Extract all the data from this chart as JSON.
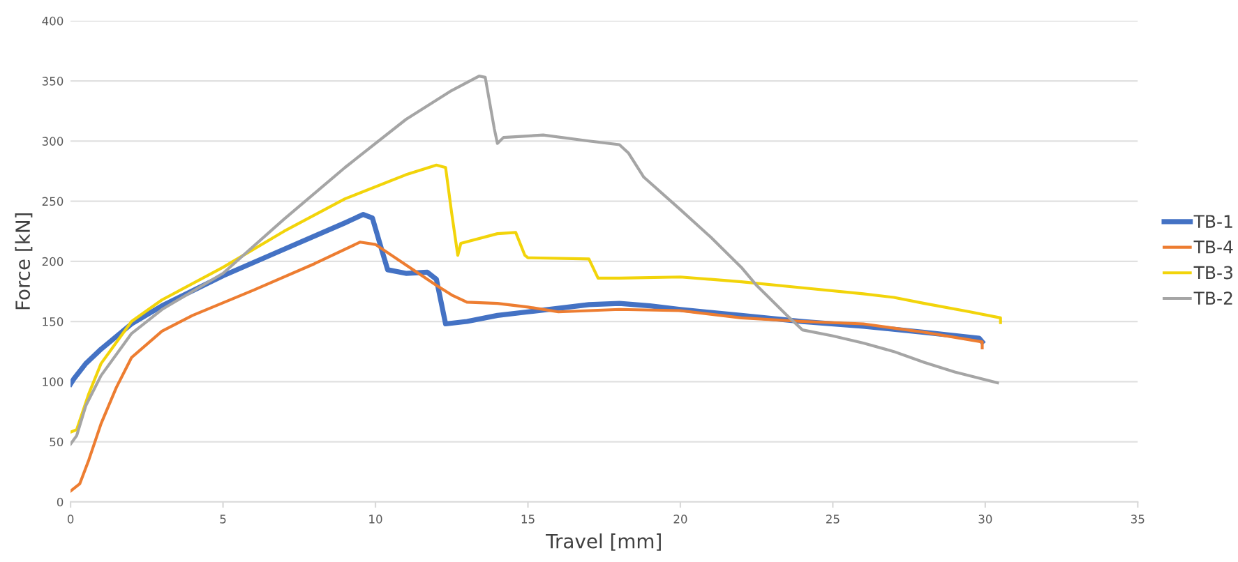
{
  "chart_data": {
    "type": "line",
    "xlabel": "Travel [mm]",
    "ylabel": "Force [kN]",
    "xlim": [
      0,
      35
    ],
    "xticks": [
      0,
      5,
      10,
      15,
      20,
      25,
      30,
      35
    ],
    "ylim": [
      0,
      400
    ],
    "yticks": [
      0,
      50,
      100,
      150,
      200,
      250,
      300,
      350,
      400
    ],
    "grid": "y",
    "legend": "right",
    "marker": "none",
    "line_style": "solid",
    "series": [
      {
        "name": "TB-1",
        "color": "#4472c4",
        "x": [
          0,
          0.1,
          0.5,
          1,
          2,
          3,
          5,
          7,
          9,
          9.6,
          9.9,
          10.2,
          10.4,
          11,
          11.7,
          12,
          12.3,
          13,
          14,
          15,
          16,
          17,
          18,
          19,
          20,
          22,
          24,
          26,
          28,
          29.8,
          29.9
        ],
        "values": [
          98,
          102,
          115,
          127,
          148,
          163,
          188,
          210,
          232,
          239,
          236,
          210,
          193,
          190,
          191,
          185,
          148,
          150,
          155,
          158,
          161,
          164,
          165,
          163,
          160,
          155,
          150,
          146,
          141,
          136,
          133
        ]
      },
      {
        "name": "TB-4",
        "color": "#ed7d31",
        "x": [
          0,
          0.3,
          0.6,
          1,
          1.5,
          2,
          3,
          4,
          6,
          8,
          9.5,
          10,
          11,
          12,
          12.5,
          13,
          14,
          15,
          16,
          18,
          20,
          22,
          24,
          26,
          28,
          29.9,
          29.9
        ],
        "values": [
          9,
          15,
          35,
          65,
          95,
          120,
          142,
          155,
          176,
          198,
          216,
          214,
          197,
          180,
          172,
          166,
          165,
          162,
          158,
          160,
          159,
          153,
          150,
          148,
          141,
          133,
          128
        ]
      },
      {
        "name": "TB-3",
        "color": "#f2d40a",
        "x": [
          0,
          0.2,
          0.6,
          1,
          2,
          3,
          5,
          7,
          9,
          11,
          12,
          12.3,
          12.5,
          12.7,
          12.8,
          14,
          14.6,
          14.9,
          15,
          17,
          17.3,
          18,
          20,
          22,
          24,
          26,
          27,
          28,
          29.5,
          30.5,
          30.5
        ],
        "values": [
          58,
          60,
          90,
          115,
          150,
          168,
          195,
          225,
          252,
          272,
          280,
          278,
          240,
          205,
          215,
          223,
          224,
          205,
          203,
          202,
          186,
          186,
          187,
          183,
          178,
          173,
          170,
          165,
          158,
          153,
          149
        ]
      },
      {
        "name": "TB-2",
        "color": "#a5a5a5",
        "x": [
          0,
          0.2,
          0.5,
          1,
          2,
          3,
          5,
          7,
          9,
          11,
          12.5,
          13.4,
          13.6,
          13.9,
          14,
          14.2,
          15.5,
          17,
          18,
          18.3,
          18.8,
          20,
          21,
          22,
          22.5,
          23.5,
          24,
          25,
          26,
          27,
          28,
          29,
          30.4
        ],
        "values": [
          48,
          55,
          80,
          105,
          140,
          160,
          190,
          235,
          278,
          318,
          342,
          354,
          353,
          310,
          298,
          303,
          305,
          300,
          297,
          290,
          270,
          243,
          220,
          195,
          180,
          155,
          143,
          138,
          132,
          125,
          116,
          108,
          99
        ]
      }
    ]
  }
}
